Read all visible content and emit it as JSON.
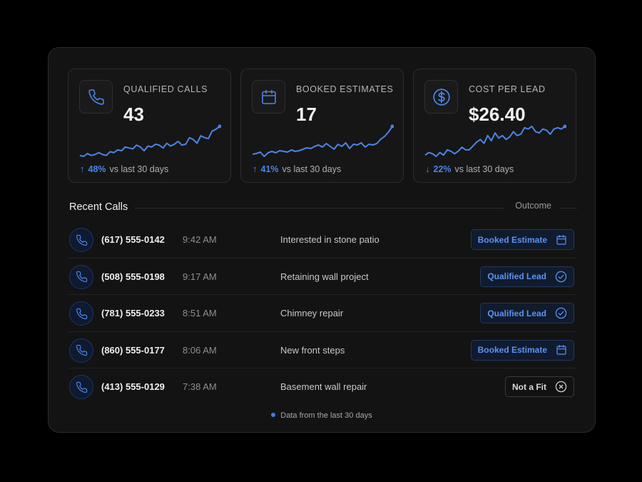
{
  "metrics": [
    {
      "label": "QUALIFIED CALLS",
      "value": "43",
      "icon": "phone-icon",
      "trend_dir": "↑",
      "trend_pct": "48%",
      "trend_text": "vs last 30 days",
      "spark": [
        3,
        2,
        5,
        3,
        4,
        6,
        4,
        3,
        7,
        6,
        9,
        8,
        12,
        11,
        10,
        14,
        12,
        8,
        13,
        12,
        15,
        14,
        11,
        16,
        13,
        15,
        18,
        14,
        15,
        22,
        20,
        16,
        24,
        22,
        21,
        29,
        31,
        34
      ]
    },
    {
      "label": "BOOKED ESTIMATES",
      "value": "17",
      "icon": "calendar-icon",
      "trend_dir": "↑",
      "trend_pct": "41%",
      "trend_text": "vs last 30 days",
      "spark": [
        5,
        6,
        8,
        2,
        7,
        9,
        7,
        10,
        9,
        8,
        11,
        9,
        10,
        12,
        14,
        13,
        16,
        18,
        15,
        20,
        16,
        12,
        19,
        16,
        21,
        13,
        19,
        18,
        21,
        15,
        19,
        18,
        20,
        26,
        30,
        36,
        44
      ]
    },
    {
      "label": "COST PER LEAD",
      "value": "$26.40",
      "icon": "dollar-icon",
      "trend_dir": "↓",
      "trend_pct": "22%",
      "trend_text": "vs last 30 days",
      "spark": [
        4,
        6,
        5,
        3,
        6,
        4,
        8,
        7,
        5,
        7,
        10,
        8,
        8,
        11,
        14,
        16,
        13,
        19,
        15,
        21,
        17,
        19,
        16,
        18,
        22,
        19,
        20,
        25,
        24,
        26,
        22,
        21,
        24,
        23,
        20,
        24,
        25,
        24,
        26
      ]
    }
  ],
  "recent": {
    "title": "Recent Calls",
    "outcome_header": "Outcome",
    "calls": [
      {
        "phone": "(617) 555-0142",
        "time": "9:42 AM",
        "desc": "Interested in stone patio",
        "outcome": "Booked Estimate",
        "style": "blue",
        "icon": "calendar-icon"
      },
      {
        "phone": "(508) 555-0198",
        "time": "9:17 AM",
        "desc": "Retaining wall project",
        "outcome": "Qualified Lead",
        "style": "blue",
        "icon": "check-circle-icon"
      },
      {
        "phone": "(781) 555-0233",
        "time": "8:51 AM",
        "desc": "Chimney repair",
        "outcome": "Qualified Lead",
        "style": "blue",
        "icon": "check-circle-icon"
      },
      {
        "phone": "(860) 555-0177",
        "time": "8:06 AM",
        "desc": "New front steps",
        "outcome": "Booked Estimate",
        "style": "blue",
        "icon": "calendar-icon"
      },
      {
        "phone": "(413) 555-0129",
        "time": "7:38 AM",
        "desc": "Basement wall repair",
        "outcome": "Not a Fit",
        "style": "neutral",
        "icon": "x-circle-icon"
      }
    ]
  },
  "footer": {
    "text": "Data from the last 30 days"
  },
  "colors": {
    "accent": "#4b84e8",
    "panel": "#131313",
    "card": "#161616"
  }
}
